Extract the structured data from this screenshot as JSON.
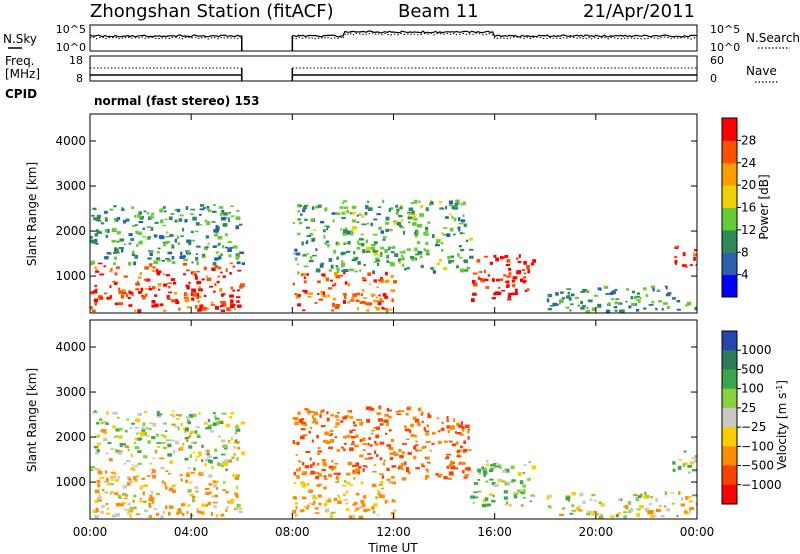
{
  "header": {
    "station": "Zhongshan Station (fitACF)",
    "beam": "Beam 11",
    "date": "21/Apr/2011"
  },
  "noise_panel": {
    "left_label": "N.Sky",
    "right_label": "N.Search",
    "left_ticks": [
      "10^5",
      "10^0"
    ],
    "right_ticks": [
      "10^5",
      "10^0"
    ]
  },
  "freq_panel": {
    "left_label_line1": "Freq.",
    "left_label_line2": "[MHz]",
    "right_label": "Nave",
    "left_ticks": [
      "18",
      "8"
    ],
    "right_ticks": [
      "60",
      "0"
    ]
  },
  "cpid": {
    "label": "CPID",
    "value": "normal (fast stereo) 153"
  },
  "chart_data": [
    {
      "type": "heatmap",
      "name_printed": "Power",
      "ylabel": "Slant Range [km]",
      "ylim": [
        180,
        4600
      ],
      "yticks": [
        "1000",
        "2000",
        "3000",
        "4000"
      ],
      "xlim_hours": [
        0,
        24
      ],
      "colorbar_label": "Power [dB]",
      "colorbar_ticks": [
        "4",
        "8",
        "12",
        "16",
        "20",
        "24",
        "28"
      ],
      "colorscale": [
        "#0000ff",
        "#2b5fb0",
        "#2e8b57",
        "#66cc33",
        "#f0d000",
        "#ff9d00",
        "#ff5000",
        "#ff0000"
      ],
      "data_gap_hours": [
        6.0,
        8.0
      ],
      "echo_regions": [
        {
          "t0": 0.0,
          "t1": 6.0,
          "r0": 250,
          "r1": 1300,
          "level": 26
        },
        {
          "t0": 0.0,
          "t1": 6.0,
          "r0": 1300,
          "r1": 2600,
          "level": 8
        },
        {
          "t0": 8.0,
          "t1": 12.0,
          "r0": 250,
          "r1": 1100,
          "level": 24
        },
        {
          "t0": 8.0,
          "t1": 15.0,
          "r0": 1100,
          "r1": 2700,
          "level": 10
        },
        {
          "t0": 15.0,
          "t1": 17.5,
          "r0": 500,
          "r1": 1500,
          "level": 28
        },
        {
          "t0": 18.0,
          "t1": 24.0,
          "r0": 250,
          "r1": 800,
          "level": 8
        },
        {
          "t0": 23.0,
          "t1": 24.0,
          "r0": 1200,
          "r1": 1700,
          "level": 26
        }
      ]
    },
    {
      "type": "heatmap",
      "name_printed": "Velocity",
      "ylabel": "Slant Range [km]",
      "ylim": [
        180,
        4600
      ],
      "yticks": [
        "1000",
        "2000",
        "3000",
        "4000"
      ],
      "xlim_hours": [
        0,
        24
      ],
      "colorbar_label": "Velocity [m s",
      "colorbar_label_sup": "-1",
      "colorbar_label_end": "]",
      "colorbar_ticks": [
        "1000",
        "500",
        "100",
        "25",
        "−25",
        "−100",
        "−500",
        "−1000"
      ],
      "colorscale": [
        "#2346b4",
        "#2e7d5a",
        "#3aa64a",
        "#88d040",
        "#c8c8c8",
        "#ffcc00",
        "#ff8c00",
        "#ff4000",
        "#ff0000"
      ],
      "data_gap_hours": [
        6.0,
        8.0
      ],
      "echo_regions": [
        {
          "t0": 0.0,
          "t1": 6.0,
          "r0": 250,
          "r1": 1300,
          "level": -100
        },
        {
          "t0": 0.0,
          "t1": 6.0,
          "r0": 1300,
          "r1": 2600,
          "level": 25
        },
        {
          "t0": 8.0,
          "t1": 12.0,
          "r0": 250,
          "r1": 1100,
          "level": -100
        },
        {
          "t0": 8.0,
          "t1": 15.0,
          "r0": 1100,
          "r1": 2700,
          "level": -500
        },
        {
          "t0": 15.0,
          "t1": 17.5,
          "r0": 500,
          "r1": 1500,
          "level": 100
        },
        {
          "t0": 18.0,
          "t1": 24.0,
          "r0": 250,
          "r1": 800,
          "level": -25
        },
        {
          "t0": 23.0,
          "t1": 24.0,
          "r0": 1200,
          "r1": 1700,
          "level": 100
        }
      ]
    }
  ],
  "x_axis": {
    "ticks": [
      "00:00",
      "04:00",
      "08:00",
      "12:00",
      "16:00",
      "20:00",
      "00:00"
    ],
    "label": "Time UT"
  }
}
